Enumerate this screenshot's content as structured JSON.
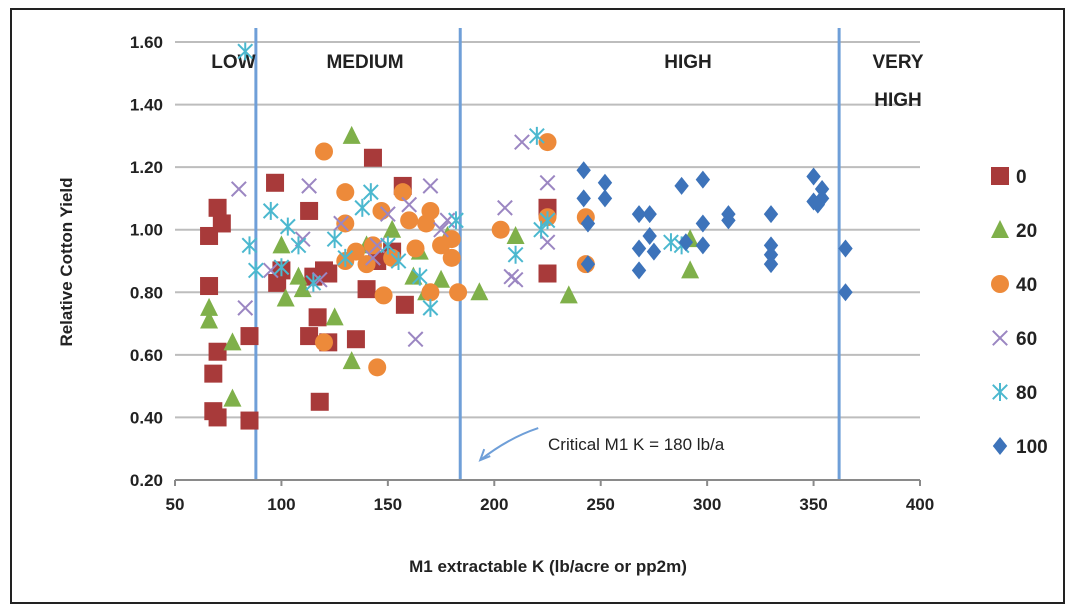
{
  "chart_data": {
    "type": "scatter",
    "xlabel": "M1 extractable K (lb/acre or pp2m)",
    "ylabel": "Relative Cotton Yield",
    "xlim": [
      50,
      400
    ],
    "ylim": [
      0.2,
      1.6
    ],
    "x_ticks": [
      50,
      100,
      150,
      200,
      250,
      300,
      350,
      400
    ],
    "y_ticks": [
      0.2,
      0.4,
      0.6,
      0.8,
      1.0,
      1.2,
      1.4,
      1.6
    ],
    "x_tick_labels": [
      "50",
      "100",
      "150",
      "200",
      "250",
      "300",
      "350",
      "400"
    ],
    "y_tick_labels": [
      "0.20",
      "0.40",
      "0.60",
      "0.80",
      "1.00",
      "1.20",
      "1.40",
      "1.60"
    ],
    "grid": "horizontal",
    "legend": "right",
    "zones": [
      {
        "label": "LOW",
        "boundary_x": 88
      },
      {
        "label": "MEDIUM",
        "boundary_x": 184
      },
      {
        "label": "HIGH",
        "boundary_x": 362
      },
      {
        "label": "VERY",
        "label2": "HIGH"
      }
    ],
    "annotation": {
      "text": "Critical M1 K = 180 lb/a",
      "x": 184,
      "y": 0.27
    },
    "series": [
      {
        "name": "0",
        "marker": "square",
        "color": "#a83a3a",
        "points": [
          [
            66,
            0.98
          ],
          [
            66,
            0.82
          ],
          [
            68,
            0.42
          ],
          [
            68,
            0.54
          ],
          [
            70,
            1.07
          ],
          [
            70,
            0.4
          ],
          [
            70,
            0.61
          ],
          [
            72,
            1.02
          ],
          [
            85,
            0.66
          ],
          [
            85,
            0.39
          ],
          [
            97,
            1.15
          ],
          [
            98,
            0.83
          ],
          [
            100,
            0.87
          ],
          [
            113,
            1.06
          ],
          [
            113,
            0.66
          ],
          [
            115,
            0.85
          ],
          [
            117,
            0.72
          ],
          [
            118,
            0.45
          ],
          [
            120,
            0.87
          ],
          [
            122,
            0.64
          ],
          [
            122,
            0.86
          ],
          [
            135,
            0.65
          ],
          [
            140,
            0.81
          ],
          [
            143,
            1.23
          ],
          [
            145,
            0.9
          ],
          [
            152,
            0.93
          ],
          [
            157,
            1.14
          ],
          [
            158,
            0.76
          ],
          [
            225,
            1.07
          ],
          [
            225,
            0.86
          ]
        ]
      },
      {
        "name": "20",
        "marker": "triangle",
        "color": "#7fb04a",
        "points": [
          [
            66,
            0.75
          ],
          [
            66,
            0.71
          ],
          [
            77,
            0.64
          ],
          [
            77,
            0.46
          ],
          [
            100,
            0.95
          ],
          [
            102,
            0.78
          ],
          [
            108,
            0.85
          ],
          [
            110,
            0.81
          ],
          [
            125,
            0.72
          ],
          [
            133,
            1.3
          ],
          [
            133,
            0.58
          ],
          [
            140,
            0.95
          ],
          [
            152,
            1.0
          ],
          [
            162,
            0.85
          ],
          [
            165,
            0.93
          ],
          [
            168,
            0.8
          ],
          [
            175,
            0.84
          ],
          [
            178,
            0.98
          ],
          [
            193,
            0.8
          ],
          [
            210,
            0.98
          ],
          [
            235,
            0.79
          ],
          [
            292,
            0.87
          ],
          [
            292,
            0.97
          ]
        ]
      },
      {
        "name": "40",
        "marker": "circle",
        "color": "#ed8a3a",
        "points": [
          [
            120,
            1.25
          ],
          [
            120,
            0.64
          ],
          [
            130,
            1.12
          ],
          [
            130,
            0.9
          ],
          [
            130,
            1.02
          ],
          [
            135,
            0.93
          ],
          [
            140,
            0.89
          ],
          [
            143,
            0.95
          ],
          [
            145,
            0.56
          ],
          [
            147,
            1.06
          ],
          [
            148,
            0.79
          ],
          [
            152,
            0.91
          ],
          [
            157,
            1.12
          ],
          [
            160,
            1.03
          ],
          [
            163,
            0.94
          ],
          [
            168,
            1.02
          ],
          [
            170,
            0.8
          ],
          [
            170,
            1.06
          ],
          [
            175,
            0.95
          ],
          [
            180,
            0.97
          ],
          [
            180,
            0.91
          ],
          [
            183,
            0.8
          ],
          [
            203,
            1.0
          ],
          [
            225,
            1.28
          ],
          [
            225,
            1.04
          ],
          [
            243,
            0.89
          ],
          [
            243,
            1.04
          ]
        ]
      },
      {
        "name": "60",
        "marker": "x",
        "color": "#9b86c2",
        "points": [
          [
            80,
            1.13
          ],
          [
            83,
            0.75
          ],
          [
            95,
            0.87
          ],
          [
            110,
            0.97
          ],
          [
            113,
            1.14
          ],
          [
            118,
            0.84
          ],
          [
            128,
            1.02
          ],
          [
            143,
            0.91
          ],
          [
            145,
            0.95
          ],
          [
            150,
            1.05
          ],
          [
            160,
            1.08
          ],
          [
            163,
            0.65
          ],
          [
            170,
            1.14
          ],
          [
            175,
            1.0
          ],
          [
            178,
            1.03
          ],
          [
            205,
            1.07
          ],
          [
            208,
            0.85
          ],
          [
            210,
            0.84
          ],
          [
            213,
            1.28
          ],
          [
            225,
            1.15
          ],
          [
            225,
            0.96
          ]
        ]
      },
      {
        "name": "80",
        "marker": "asterisk",
        "color": "#4bb8cf",
        "points": [
          [
            83,
            1.57
          ],
          [
            85,
            0.95
          ],
          [
            88,
            0.87
          ],
          [
            95,
            1.06
          ],
          [
            100,
            0.88
          ],
          [
            103,
            1.01
          ],
          [
            108,
            0.95
          ],
          [
            115,
            0.83
          ],
          [
            125,
            0.97
          ],
          [
            130,
            0.91
          ],
          [
            138,
            1.07
          ],
          [
            142,
            1.12
          ],
          [
            150,
            0.95
          ],
          [
            155,
            0.9
          ],
          [
            165,
            0.85
          ],
          [
            170,
            0.75
          ],
          [
            182,
            1.03
          ],
          [
            210,
            0.92
          ],
          [
            220,
            1.3
          ],
          [
            222,
            1.0
          ],
          [
            225,
            1.03
          ],
          [
            283,
            0.96
          ],
          [
            288,
            0.95
          ]
        ]
      },
      {
        "name": "100",
        "marker": "diamond",
        "color": "#3d73ba",
        "points": [
          [
            242,
            1.19
          ],
          [
            242,
            1.1
          ],
          [
            244,
            1.02
          ],
          [
            244,
            0.89
          ],
          [
            252,
            1.15
          ],
          [
            252,
            1.1
          ],
          [
            268,
            1.05
          ],
          [
            268,
            0.94
          ],
          [
            268,
            0.87
          ],
          [
            273,
            1.05
          ],
          [
            273,
            0.98
          ],
          [
            275,
            0.93
          ],
          [
            288,
            1.14
          ],
          [
            290,
            0.96
          ],
          [
            298,
            1.16
          ],
          [
            298,
            1.02
          ],
          [
            298,
            0.95
          ],
          [
            310,
            1.05
          ],
          [
            310,
            1.03
          ],
          [
            330,
            1.05
          ],
          [
            330,
            0.95
          ],
          [
            330,
            0.92
          ],
          [
            330,
            0.89
          ],
          [
            350,
            1.17
          ],
          [
            350,
            1.09
          ],
          [
            352,
            1.08
          ],
          [
            354,
            1.13
          ],
          [
            354,
            1.1
          ],
          [
            365,
            0.94
          ],
          [
            365,
            0.8
          ]
        ]
      }
    ]
  }
}
